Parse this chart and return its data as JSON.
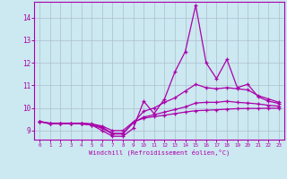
{
  "title": "",
  "xlabel": "Windchill (Refroidissement éolien,°C)",
  "ylabel": "",
  "background_color": "#cce8f0",
  "line_color": "#aa00aa",
  "grid_color": "#aabbcc",
  "x_min": -0.5,
  "x_max": 23.5,
  "y_min": 8.6,
  "y_max": 14.7,
  "yticks": [
    9,
    10,
    11,
    12,
    13,
    14
  ],
  "xticks": [
    0,
    1,
    2,
    3,
    4,
    5,
    6,
    7,
    8,
    9,
    10,
    11,
    12,
    13,
    14,
    15,
    16,
    17,
    18,
    19,
    20,
    21,
    22,
    23
  ],
  "lines": [
    [
      9.4,
      9.3,
      9.3,
      9.3,
      9.3,
      9.25,
      9.0,
      8.75,
      8.75,
      9.1,
      10.3,
      9.75,
      10.4,
      11.6,
      12.5,
      14.55,
      12.0,
      11.3,
      12.15,
      10.9,
      11.05,
      10.5,
      10.3,
      10.2
    ],
    [
      9.4,
      9.3,
      9.3,
      9.3,
      9.3,
      9.25,
      9.1,
      8.85,
      8.85,
      9.35,
      9.85,
      10.0,
      10.25,
      10.45,
      10.75,
      11.05,
      10.9,
      10.85,
      10.9,
      10.85,
      10.8,
      10.55,
      10.4,
      10.25
    ],
    [
      9.4,
      9.32,
      9.32,
      9.32,
      9.32,
      9.28,
      9.15,
      8.88,
      8.88,
      9.35,
      9.6,
      9.7,
      9.82,
      9.93,
      10.05,
      10.22,
      10.25,
      10.25,
      10.3,
      10.25,
      10.22,
      10.18,
      10.12,
      10.08
    ],
    [
      9.4,
      9.33,
      9.33,
      9.33,
      9.33,
      9.3,
      9.2,
      9.0,
      9.0,
      9.38,
      9.55,
      9.62,
      9.68,
      9.75,
      9.82,
      9.88,
      9.9,
      9.92,
      9.95,
      9.97,
      9.98,
      9.98,
      9.99,
      9.99
    ]
  ]
}
